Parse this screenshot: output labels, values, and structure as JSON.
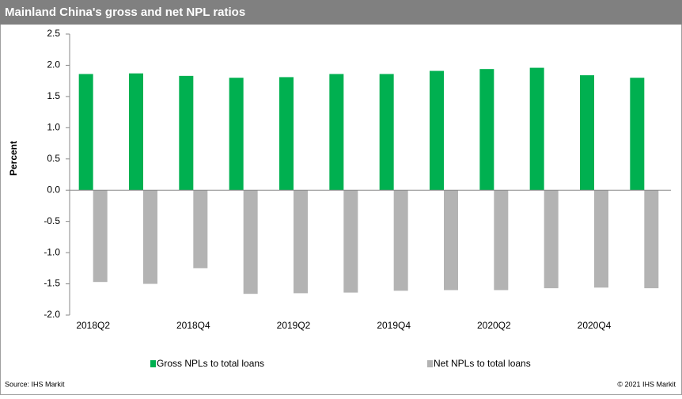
{
  "chart_data": {
    "type": "bar",
    "title": "Mainland China's gross and net NPL ratios",
    "y_label": "Percent",
    "categories": [
      "2018Q2",
      null,
      "2018Q4",
      null,
      "2019Q2",
      null,
      "2019Q4",
      null,
      "2020Q2",
      null,
      "2020Q4",
      null
    ],
    "series": [
      {
        "name": "Gross NPLs to total loans",
        "color": "#00b050",
        "values": [
          1.86,
          1.87,
          1.83,
          1.8,
          1.81,
          1.86,
          1.86,
          1.91,
          1.94,
          1.96,
          1.84,
          1.8
        ]
      },
      {
        "name": "Net NPLs to total loans",
        "color": "#b3b3b3",
        "values": [
          -1.47,
          -1.5,
          -1.25,
          -1.66,
          -1.65,
          -1.64,
          -1.61,
          -1.6,
          -1.6,
          -1.57,
          -1.56,
          -1.57
        ]
      }
    ],
    "ylim": [
      -2.0,
      2.5
    ],
    "yticks": [
      2.5,
      {
        "value": 2,
        "label": "2.0"
      },
      1.5,
      {
        "value": 1,
        "label": "1.0"
      },
      0.5,
      {
        "value": 0,
        "label": "0.0"
      },
      -0.5,
      {
        "value": -1,
        "label": "-1.0"
      },
      -1.5,
      {
        "value": -2,
        "label": "-2.0"
      }
    ],
    "source": "Source: IHS Markit",
    "copyright": "© 2021 IHS Markit"
  }
}
